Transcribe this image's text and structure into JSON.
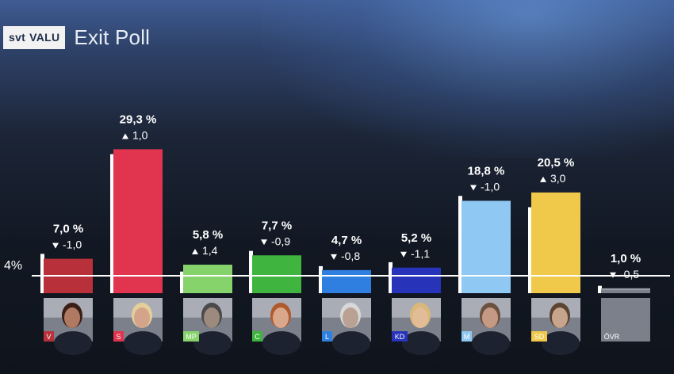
{
  "header": {
    "logo_text": "svt VALU",
    "logo_brand": "svt",
    "logo_product": "VALU",
    "title": "Exit Poll"
  },
  "chart_data": {
    "type": "bar",
    "title": "Exit Poll",
    "categories": [
      "V",
      "S",
      "MP",
      "C",
      "L",
      "KD",
      "M",
      "SD",
      "ÖVR"
    ],
    "values": [
      7.0,
      29.3,
      5.8,
      7.7,
      4.7,
      5.2,
      18.8,
      20.5,
      1.0
    ],
    "value_labels": [
      "7,0 %",
      "29,3 %",
      "5,8 %",
      "7,7 %",
      "4,7 %",
      "5,2 %",
      "18,8 %",
      "20,5 %",
      "1,0 %"
    ],
    "change_values": [
      -1.0,
      1.0,
      1.4,
      -0.9,
      -0.8,
      -1.1,
      -1.0,
      3.0,
      -0.5
    ],
    "change_labels": [
      "-1,0",
      "1,0",
      "1,4",
      "-0,9",
      "-0,8",
      "-1,1",
      "-1,0",
      "3,0",
      "-0,5"
    ],
    "previous_values": [
      8.0,
      28.3,
      4.4,
      8.6,
      5.5,
      6.3,
      19.8,
      17.5,
      1.5
    ],
    "colors": [
      "#b8313a",
      "#e0344f",
      "#86d36b",
      "#3fb53f",
      "#2f7fe0",
      "#2733b9",
      "#8fc8f2",
      "#f0c84a",
      "#7b808b"
    ],
    "threshold": {
      "value": 4,
      "label": "4%"
    },
    "ylim": [
      0,
      32
    ],
    "grid": false,
    "legend": "none"
  }
}
